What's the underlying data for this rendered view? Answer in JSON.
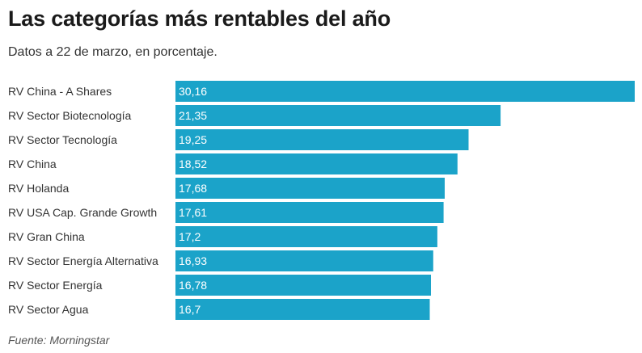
{
  "chart_data": {
    "type": "bar",
    "orientation": "horizontal",
    "title": "Las categorías más rentables del año",
    "subtitle": "Datos a 22 de marzo, en porcentaje.",
    "source": "Fuente: Morningstar",
    "bar_color": "#1ba3c9",
    "categories": [
      "RV China - A Shares",
      "RV Sector Biotecnología",
      "RV Sector Tecnología",
      "RV China",
      "RV Holanda",
      "RV USA Cap. Grande Growth",
      "RV Gran China",
      "RV Sector Energía Alternativa",
      "RV Sector Energía",
      "RV Sector Agua"
    ],
    "values": [
      30.16,
      21.35,
      19.25,
      18.52,
      17.68,
      17.61,
      17.2,
      16.93,
      16.78,
      16.7
    ],
    "value_labels": [
      "30,16",
      "21,35",
      "19,25",
      "18,52",
      "17,68",
      "17,61",
      "17,2",
      "16,93",
      "16,78",
      "16,7"
    ],
    "xlim": [
      0,
      30.16
    ]
  }
}
